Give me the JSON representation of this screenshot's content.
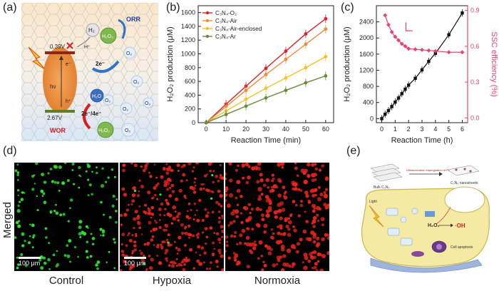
{
  "panels": {
    "a": "(a)",
    "b": "(b)",
    "c": "(c)",
    "d": "(d)",
    "e": "(e)"
  },
  "panel_a": {
    "orr": "ORR",
    "wor": "WOR",
    "h2": "H₂",
    "h_plus": "H⁺",
    "h2o2_top": "H₂O₂",
    "o2_a": "O₂",
    "o2_b": "O₂",
    "o2_c": "O₂",
    "o2_d": "O₂",
    "o2_e": "O₂",
    "two_e": "2e⁻",
    "e_minus": "e⁻",
    "h_hole": "h⁺",
    "hv": "hν",
    "cb": "0.39V",
    "vb": "2.67V",
    "h2o": "H₂O",
    "two_e_four_e": "2e⁻/4e⁻",
    "h2o2_bottom": "H₂O₂",
    "o2_bottom": "O₂"
  },
  "panel_d": {
    "row_label": "Merged",
    "scale": "100 μm",
    "captions": [
      "Control",
      "Hypoxia",
      "Normoxia"
    ]
  },
  "panel_e": {
    "top_left": "Bulk C₃N₄",
    "top_arrow": "Ultrasonication impregnation of Fe³⁺",
    "top_right": "C₃N₄ nanosheets",
    "light": "Light",
    "h2o2": "H₂O₂",
    "oh": "·OH",
    "apoptosis": "Cell apoptosis"
  },
  "chart_data": [
    {
      "type": "line",
      "title": "",
      "xlabel": "Reaction Time (min)",
      "ylabel": "H₂O₂ production (μM)",
      "x": [
        0,
        10,
        20,
        30,
        40,
        50,
        60
      ],
      "xlim": [
        -4,
        64
      ],
      "ylim": [
        0,
        1700
      ],
      "xticks": [
        "0",
        "10",
        "20",
        "30",
        "40",
        "50",
        "60"
      ],
      "yticks": [
        "0",
        "200",
        "400",
        "600",
        "800",
        "1000",
        "1200",
        "1400",
        "1600"
      ],
      "legend_position": "top-left",
      "series": [
        {
          "name": "C₃N₄-O₂",
          "color": "#d7232a",
          "values": [
            0,
            270,
            530,
            790,
            1040,
            1290,
            1510
          ]
        },
        {
          "name": "C₃N₄-Air",
          "color": "#f08a3c",
          "values": [
            0,
            235,
            470,
            700,
            920,
            1140,
            1360
          ]
        },
        {
          "name": "C₃N₄-Air-enclosed",
          "color": "#f3c22b",
          "values": [
            0,
            170,
            340,
            500,
            650,
            800,
            960
          ]
        },
        {
          "name": "C₃N₄-Ar",
          "color": "#6a8b3a",
          "values": [
            0,
            120,
            240,
            360,
            470,
            580,
            680
          ]
        }
      ]
    },
    {
      "type": "line",
      "title": "",
      "xlabel": "Reaction Time (h)",
      "ylabel": "H₂O₂ production (μM)",
      "y2label": "SSC efficiency (%)",
      "xlim": [
        -0.4,
        6.4
      ],
      "ylim": [
        -100,
        2800
      ],
      "y2lim": [
        -0.04,
        0.94
      ],
      "xticks": [
        "0",
        "1",
        "2",
        "3",
        "4",
        "5",
        "6"
      ],
      "yticks": [
        "0",
        "400",
        "800",
        "1200",
        "1600",
        "2000",
        "2400"
      ],
      "y2ticks": [
        "0.0",
        "0.3",
        "0.6",
        "0.9"
      ],
      "series": [
        {
          "name": "H₂O₂ production",
          "color": "#111111",
          "axis": "left",
          "x": [
            0,
            0.25,
            0.5,
            0.75,
            1,
            1.25,
            1.5,
            1.75,
            2,
            2.5,
            3,
            3.5,
            4,
            5,
            6
          ],
          "values": [
            0,
            110,
            200,
            300,
            410,
            510,
            620,
            730,
            830,
            1000,
            1210,
            1420,
            1620,
            2080,
            2620
          ]
        },
        {
          "name": "SSC efficiency",
          "color": "#e8456e",
          "axis": "right",
          "x": [
            0.25,
            0.5,
            0.75,
            1,
            1.25,
            1.5,
            1.75,
            2,
            2.5,
            3,
            3.5,
            4,
            5,
            6
          ],
          "values": [
            0.86,
            0.78,
            0.72,
            0.68,
            0.65,
            0.62,
            0.6,
            0.58,
            0.575,
            0.57,
            0.565,
            0.56,
            0.55,
            0.55
          ]
        }
      ]
    }
  ]
}
